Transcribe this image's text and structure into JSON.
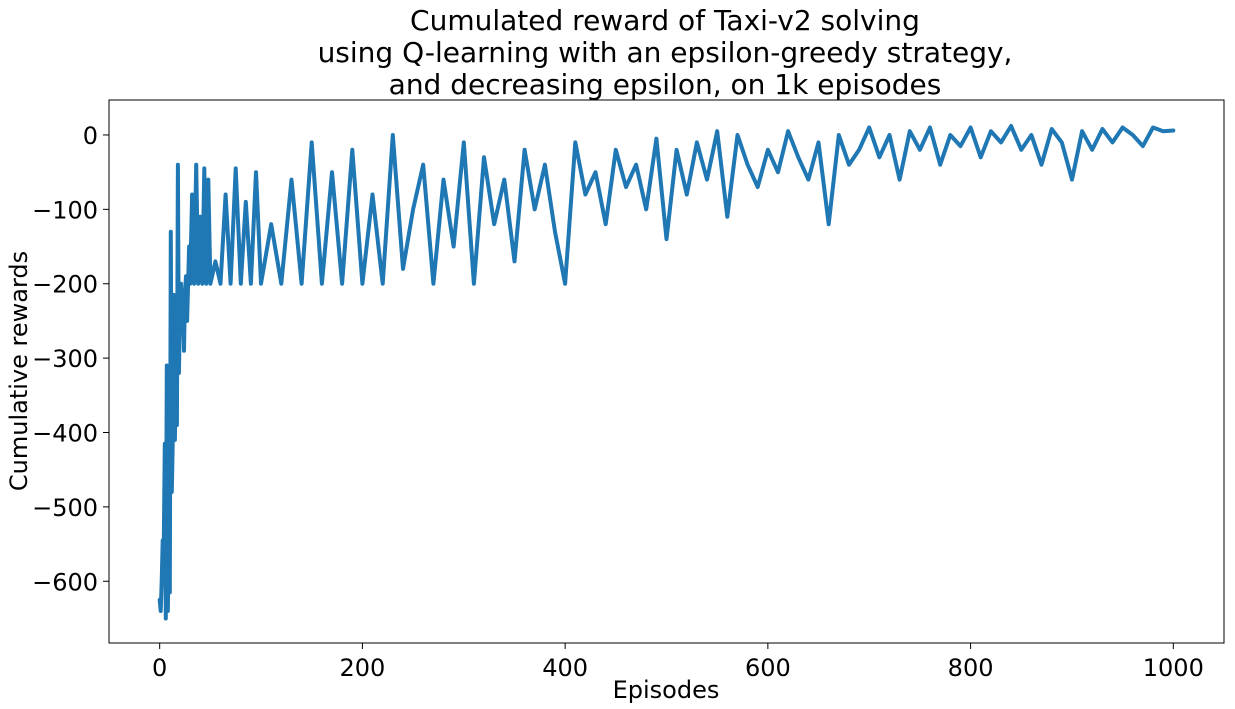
{
  "chart_data": {
    "type": "line",
    "title_lines": [
      "Cumulated reward of Taxi-v2 solving",
      "using Q-learning with an epsilon-greedy strategy,",
      "and decreasing epsilon, on 1k episodes"
    ],
    "xlabel": "Episodes",
    "ylabel": "Cumulative rewards",
    "xlim": [
      -50,
      1050
    ],
    "ylim": [
      -683,
      47
    ],
    "x_ticks": [
      0,
      200,
      400,
      600,
      800,
      1000
    ],
    "x_tick_labels": [
      "0",
      "200",
      "400",
      "600",
      "800",
      "1000"
    ],
    "y_ticks": [
      0,
      -100,
      -200,
      -300,
      -400,
      -500,
      -600
    ],
    "y_tick_labels": [
      "0",
      "−100",
      "−200",
      "−300",
      "−400",
      "−500",
      "−600"
    ],
    "grid": false,
    "line_color": "#1f77b4",
    "series": [
      {
        "x": [
          0,
          1,
          2,
          3,
          4,
          5,
          6,
          7,
          8,
          9,
          10,
          11,
          12,
          13,
          14,
          15,
          16,
          17,
          18,
          19,
          20,
          21,
          22,
          23,
          24,
          25,
          26,
          27,
          28,
          29,
          30,
          32,
          34,
          36,
          38,
          40,
          42,
          44,
          46,
          48,
          50,
          55,
          60,
          65,
          70,
          75,
          80,
          85,
          90,
          95,
          100,
          110,
          120,
          130,
          140,
          150,
          160,
          170,
          180,
          190,
          200,
          210,
          220,
          230,
          240,
          250,
          260,
          270,
          280,
          290,
          300,
          310,
          320,
          330,
          340,
          350,
          360,
          370,
          380,
          390,
          400,
          410,
          420,
          430,
          440,
          450,
          460,
          470,
          480,
          490,
          500,
          510,
          520,
          530,
          540,
          550,
          560,
          570,
          580,
          590,
          600,
          610,
          620,
          630,
          640,
          650,
          660,
          670,
          680,
          690,
          700,
          710,
          720,
          730,
          740,
          750,
          760,
          770,
          780,
          790,
          800,
          810,
          820,
          830,
          840,
          850,
          860,
          870,
          880,
          890,
          900,
          910,
          920,
          930,
          940,
          950,
          960,
          970,
          980,
          990,
          1000
        ],
        "y": [
          -625,
          -640,
          -600,
          -545,
          -560,
          -415,
          -650,
          -310,
          -640,
          -560,
          -615,
          -130,
          -480,
          -400,
          -215,
          -410,
          -300,
          -390,
          -40,
          -320,
          -240,
          -200,
          -260,
          -225,
          -290,
          -210,
          -190,
          -250,
          -200,
          -150,
          -200,
          -80,
          -200,
          -40,
          -200,
          -110,
          -200,
          -45,
          -200,
          -60,
          -200,
          -170,
          -200,
          -80,
          -200,
          -45,
          -200,
          -90,
          -200,
          -50,
          -200,
          -120,
          -200,
          -60,
          -200,
          -10,
          -200,
          -50,
          -200,
          -20,
          -200,
          -80,
          -200,
          0,
          -180,
          -100,
          -40,
          -200,
          -60,
          -150,
          -10,
          -200,
          -30,
          -120,
          -60,
          -170,
          -20,
          -100,
          -40,
          -130,
          -200,
          -10,
          -80,
          -50,
          -120,
          -20,
          -70,
          -40,
          -100,
          -5,
          -140,
          -20,
          -80,
          -10,
          -60,
          5,
          -110,
          0,
          -40,
          -70,
          -20,
          -50,
          5,
          -30,
          -60,
          -10,
          -120,
          0,
          -40,
          -20,
          10,
          -30,
          0,
          -60,
          5,
          -20,
          10,
          -40,
          0,
          -15,
          10,
          -30,
          5,
          -10,
          12,
          -20,
          0,
          -40,
          8,
          -10,
          -60,
          5,
          -20,
          8,
          -10,
          10,
          0,
          -15,
          10,
          5,
          6
        ]
      }
    ]
  }
}
